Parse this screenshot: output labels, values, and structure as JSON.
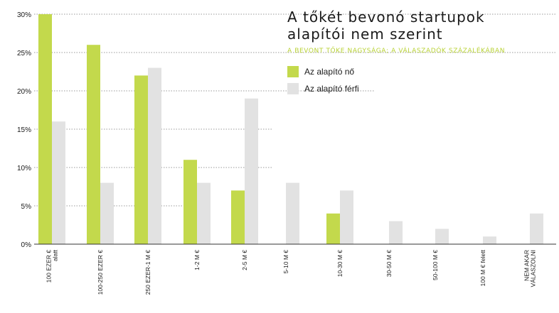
{
  "chart_data": {
    "type": "bar",
    "title_lines": [
      "A tőkét bevonó startupok",
      "alapítói nem szerint"
    ],
    "subtitle": "A BEVONT TŐKE NAGYSÁGA; A VÁLASZADÓK SZÁZALÉKÁBAN",
    "categories": [
      [
        "100 EZER €",
        "alatt"
      ],
      [
        "100-250 EZER €"
      ],
      [
        "250 EZER-1 M €"
      ],
      [
        "1-2 M €"
      ],
      [
        "2-5 M €"
      ],
      [
        "5-10 M €"
      ],
      [
        "10-30 M €"
      ],
      [
        "30-50 M €"
      ],
      [
        "50-100 M €"
      ],
      [
        "100 M € felett"
      ],
      [
        "NEM AKAR",
        "VÁLASZOLNI"
      ]
    ],
    "series": [
      {
        "name": "Az alapító nő",
        "color": "#c3d94c",
        "values": [
          30,
          26,
          22,
          11,
          7,
          0,
          4,
          0,
          0,
          0,
          0
        ]
      },
      {
        "name": "Az alapító férfi",
        "color": "#e2e2e2",
        "values": [
          16,
          8,
          23,
          8,
          19,
          8,
          7,
          3,
          2,
          1,
          4
        ]
      }
    ],
    "yticks": [
      "0%",
      "5%",
      "10%",
      "15%",
      "20%",
      "25%",
      "30%"
    ],
    "ylim": [
      0,
      30
    ],
    "grid": true
  }
}
